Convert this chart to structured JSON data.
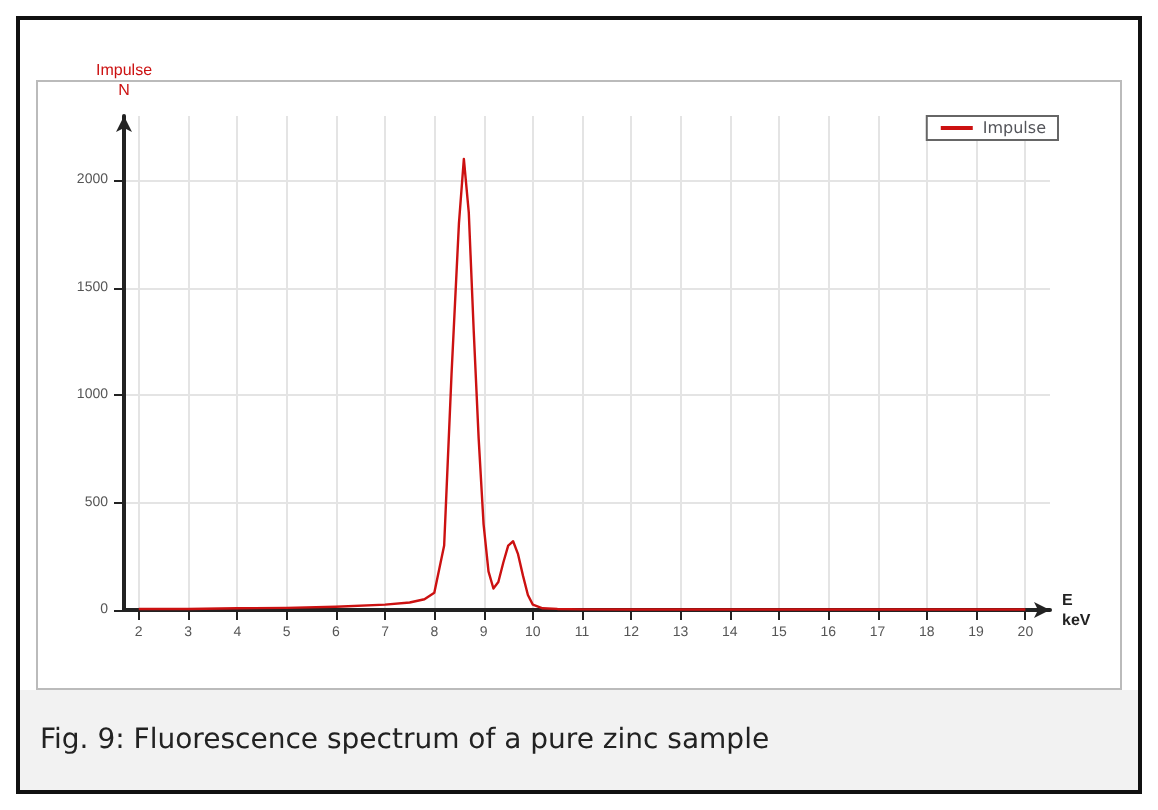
{
  "chart_data": {
    "type": "line",
    "xlabel": "E\nkeV",
    "ylabel": "Impulse\nN",
    "annotations": [
      "Fig. 9: Fluorescence spectrum of a pure zinc sample"
    ],
    "series": [
      {
        "name": "Impulse",
        "color": "#cc1111",
        "x": [
          2,
          3,
          4,
          5,
          6,
          7,
          7.5,
          7.8,
          8.0,
          8.2,
          8.35,
          8.5,
          8.6,
          8.7,
          8.8,
          8.9,
          9.0,
          9.1,
          9.2,
          9.3,
          9.4,
          9.5,
          9.6,
          9.7,
          9.8,
          9.9,
          10.0,
          10.2,
          10.5,
          11,
          12,
          14,
          16,
          18,
          20
        ],
        "values": [
          5,
          5,
          8,
          10,
          15,
          25,
          35,
          50,
          80,
          300,
          1100,
          1800,
          2100,
          1850,
          1300,
          800,
          400,
          180,
          100,
          130,
          220,
          300,
          320,
          260,
          160,
          70,
          25,
          8,
          5,
          3,
          2,
          2,
          2,
          2,
          2
        ]
      }
    ],
    "xlim": [
      1.7,
      20.5
    ],
    "xticks": [
      2,
      3,
      4,
      5,
      6,
      7,
      8,
      9,
      10,
      11,
      12,
      13,
      14,
      15,
      16,
      17,
      18,
      19,
      20
    ],
    "ylim": [
      0,
      2300
    ],
    "yticks": [
      0,
      500,
      1000,
      1500,
      2000
    ],
    "grid": true,
    "legend": "top right",
    "marker": "none",
    "line_style": "solid"
  }
}
